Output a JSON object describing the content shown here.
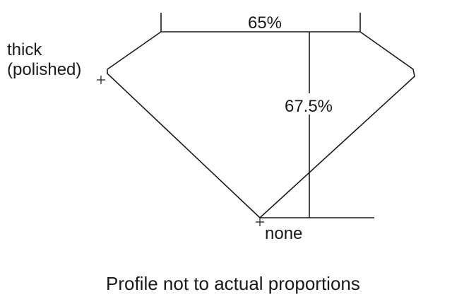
{
  "labels": {
    "table_width": "65%",
    "total_depth": "67.5%",
    "girdle_line1": "thick",
    "girdle_line2": "(polished)",
    "culet": "none",
    "caption": "Profile not to actual proportions"
  },
  "colors": {
    "line": "#1a1a1a",
    "background": "#ffffff"
  }
}
